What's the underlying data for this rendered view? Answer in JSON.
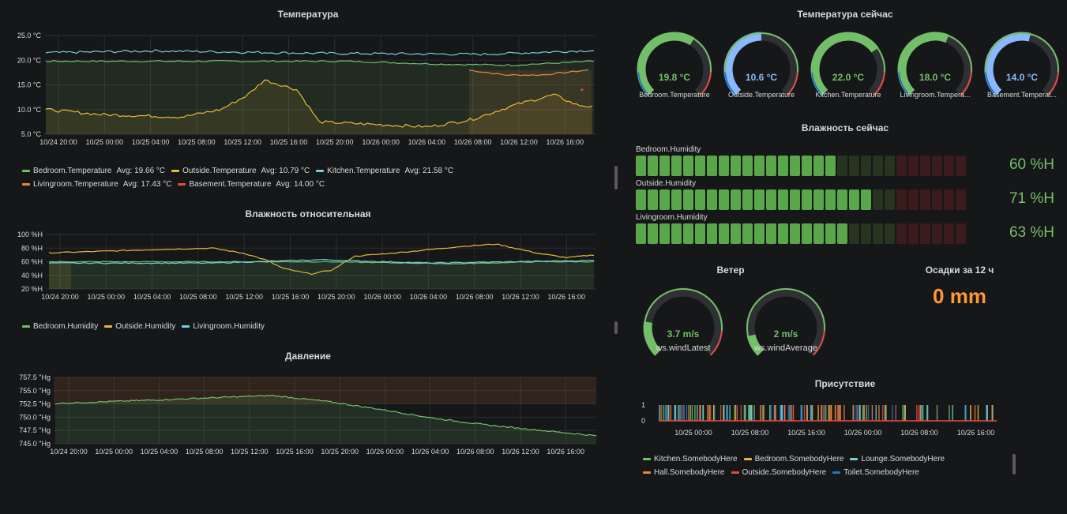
{
  "temperature_panel": {
    "title": "Температура",
    "yticks": [
      "25.0 °C",
      "20.0 °C",
      "15.0 °C",
      "10.0 °C",
      "5.0 °C"
    ],
    "xticks": [
      "10/24 20:00",
      "10/25 00:00",
      "10/25 04:00",
      "10/25 08:00",
      "10/25 12:00",
      "10/25 16:00",
      "10/25 20:00",
      "10/26 00:00",
      "10/26 04:00",
      "10/26 08:00",
      "10/26 12:00",
      "10/26 16:00"
    ],
    "legend": [
      {
        "name": "Bedroom.Temperature",
        "avg": "Avg: 19.66 °C",
        "color": "#73bf69"
      },
      {
        "name": "Outside.Temperature",
        "avg": "Avg: 10.79 °C",
        "color": "#eab839"
      },
      {
        "name": "Kitchen.Temperature",
        "avg": "Avg: 21.58 °C",
        "color": "#6ed0e0"
      },
      {
        "name": "Livingroom.Temperature",
        "avg": "Avg: 17.43 °C",
        "color": "#ef843c"
      },
      {
        "name": "Basement.Temperature",
        "avg": "Avg: 14.00 °C",
        "color": "#e24d42"
      }
    ]
  },
  "humidity_panel": {
    "title": "Влажность относительная",
    "yticks": [
      "100 %H",
      "80 %H",
      "60 %H",
      "40 %H",
      "20 %H"
    ],
    "xticks": [
      "10/24 20:00",
      "10/25 00:00",
      "10/25 04:00",
      "10/25 08:00",
      "10/25 12:00",
      "10/25 16:00",
      "10/25 20:00",
      "10/26 00:00",
      "10/26 04:00",
      "10/26 08:00",
      "10/26 12:00",
      "10/26 16:00"
    ],
    "legend": [
      {
        "name": "Bedroom.Humidity",
        "color": "#73bf69"
      },
      {
        "name": "Outside.Humidity",
        "color": "#eab839"
      },
      {
        "name": "Livingroom.Humidity",
        "color": "#6ed0e0"
      }
    ]
  },
  "pressure_panel": {
    "title": "Давление",
    "yticks": [
      "757.5 \"Hg",
      "755.0 \"Hg",
      "752.5 \"Hg",
      "750.0 \"Hg",
      "747.5 \"Hg",
      "745.0 \"Hg"
    ],
    "xticks": [
      "10/24 20:00",
      "10/25 00:00",
      "10/25 04:00",
      "10/25 08:00",
      "10/25 12:00",
      "10/25 16:00",
      "10/25 20:00",
      "10/26 00:00",
      "10/26 04:00",
      "10/26 08:00",
      "10/26 12:00",
      "10/26 16:00"
    ]
  },
  "temp_now_panel": {
    "title": "Температура сейчас",
    "gauges": [
      {
        "value": "19.8 °C",
        "label": "Bedroom.Temperature",
        "fraction": 0.62,
        "color": "#73bf69"
      },
      {
        "value": "10.6 °C",
        "label": "Outside.Temperature",
        "fraction": 0.5,
        "color": "#8ab8ff"
      },
      {
        "value": "22.0 °C",
        "label": "Kitchen.Temperature",
        "fraction": 0.7,
        "color": "#73bf69"
      },
      {
        "value": "18.0 °C",
        "label": "Livingroom.Tempera...",
        "fraction": 0.58,
        "color": "#73bf69"
      },
      {
        "value": "14.0 °C",
        "label": "Basement.Temperat...",
        "fraction": 0.55,
        "color": "#8ab8ff"
      }
    ]
  },
  "humidity_now_panel": {
    "title": "Влажность сейчас",
    "bars": [
      {
        "label": "Bedroom.Humidity",
        "value": "60 %H",
        "fraction": 0.6
      },
      {
        "label": "Outside.Humidity",
        "value": "71 %H",
        "fraction": 0.71
      },
      {
        "label": "Livingroom.Humidity",
        "value": "63 %H",
        "fraction": 0.63
      }
    ]
  },
  "wind_panel": {
    "title": "Ветер",
    "gauges": [
      {
        "value": "3.7 m/s",
        "label": "ws.windLatest",
        "fraction": 0.2
      },
      {
        "value": "2 m/s",
        "label": "ws.windAverage",
        "fraction": 0.12
      }
    ]
  },
  "rain_panel": {
    "title": "Осадки за 12 ч",
    "value": "0 mm"
  },
  "presence_panel": {
    "title": "Присутствие",
    "yticks": [
      "1",
      "0"
    ],
    "xticks": [
      "10/25 00:00",
      "10/25 08:00",
      "10/25 16:00",
      "10/26 00:00",
      "10/26 08:00",
      "10/26 16:00"
    ],
    "legend": [
      {
        "name": "Kitchen.SomebodyHere",
        "color": "#73bf69"
      },
      {
        "name": "Bedroom.SomebodyHere",
        "color": "#eab839"
      },
      {
        "name": "Lounge.SomebodyHere",
        "color": "#6ed0e0"
      },
      {
        "name": "Hall.SomebodyHere",
        "color": "#ef843c"
      },
      {
        "name": "Outside.SomebodyHere",
        "color": "#e24d42"
      },
      {
        "name": "Toilet.SomebodyHere",
        "color": "#1f78c1"
      }
    ]
  }
}
